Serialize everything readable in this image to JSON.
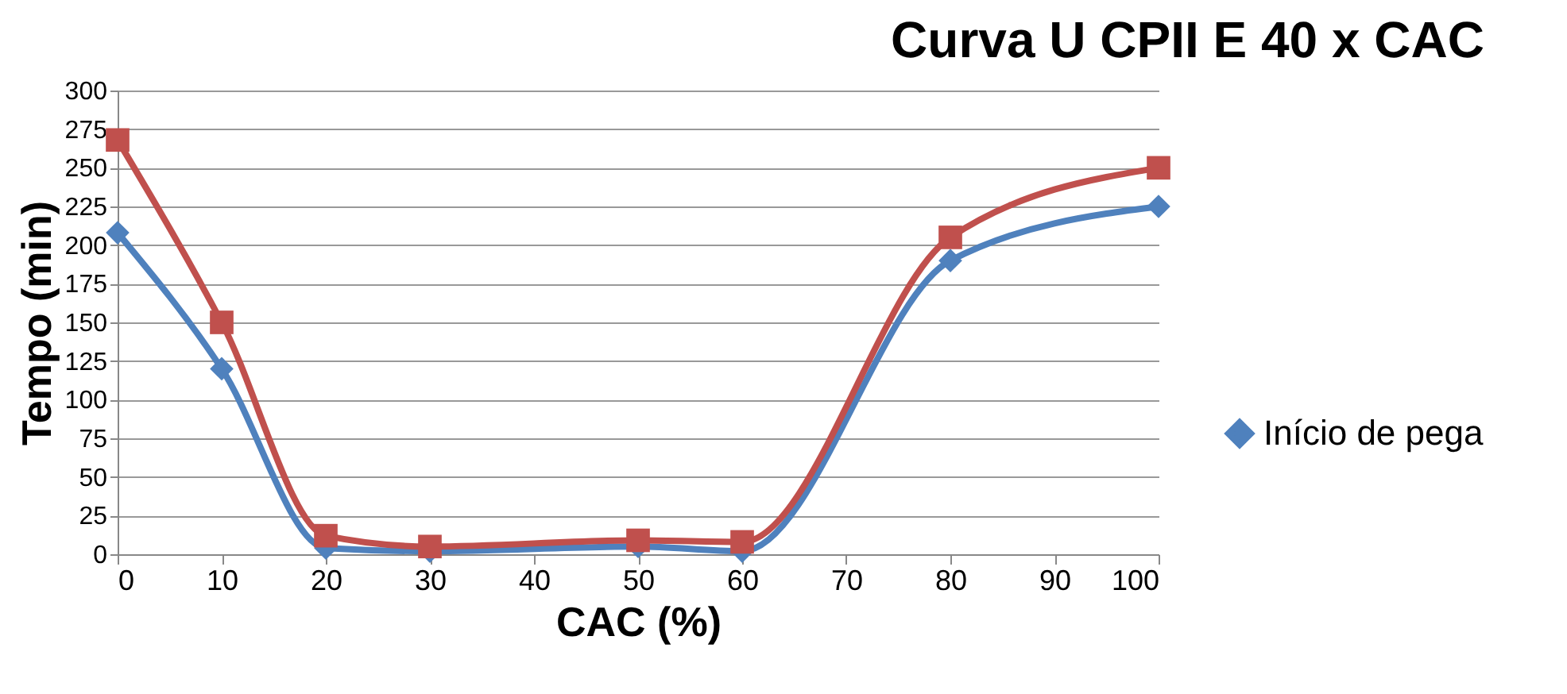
{
  "chart_data": {
    "type": "line",
    "title": "Curva U CPII E 40 x CAC",
    "xlabel": "CAC (%)",
    "ylabel": "Tempo (min)",
    "x": [
      0,
      10,
      20,
      30,
      50,
      60,
      80,
      100
    ],
    "series": [
      {
        "name": "Início de pega",
        "color": "#4f81bd",
        "marker": "diamond",
        "values": [
          208,
          120,
          4,
          2,
          5,
          2,
          190,
          225
        ]
      },
      {
        "color": "#c0504d",
        "marker": "square",
        "values": [
          268,
          150,
          12,
          5,
          9,
          8,
          205,
          250
        ]
      }
    ],
    "xlim": [
      0,
      100
    ],
    "xticks": [
      0,
      10,
      20,
      30,
      40,
      50,
      60,
      70,
      80,
      90,
      100
    ],
    "ylim": [
      0,
      300
    ],
    "yticks": [
      0,
      25,
      50,
      75,
      100,
      125,
      150,
      175,
      200,
      225,
      250,
      275,
      300
    ],
    "grid": "y",
    "legend": "right",
    "line_style": "solid"
  }
}
